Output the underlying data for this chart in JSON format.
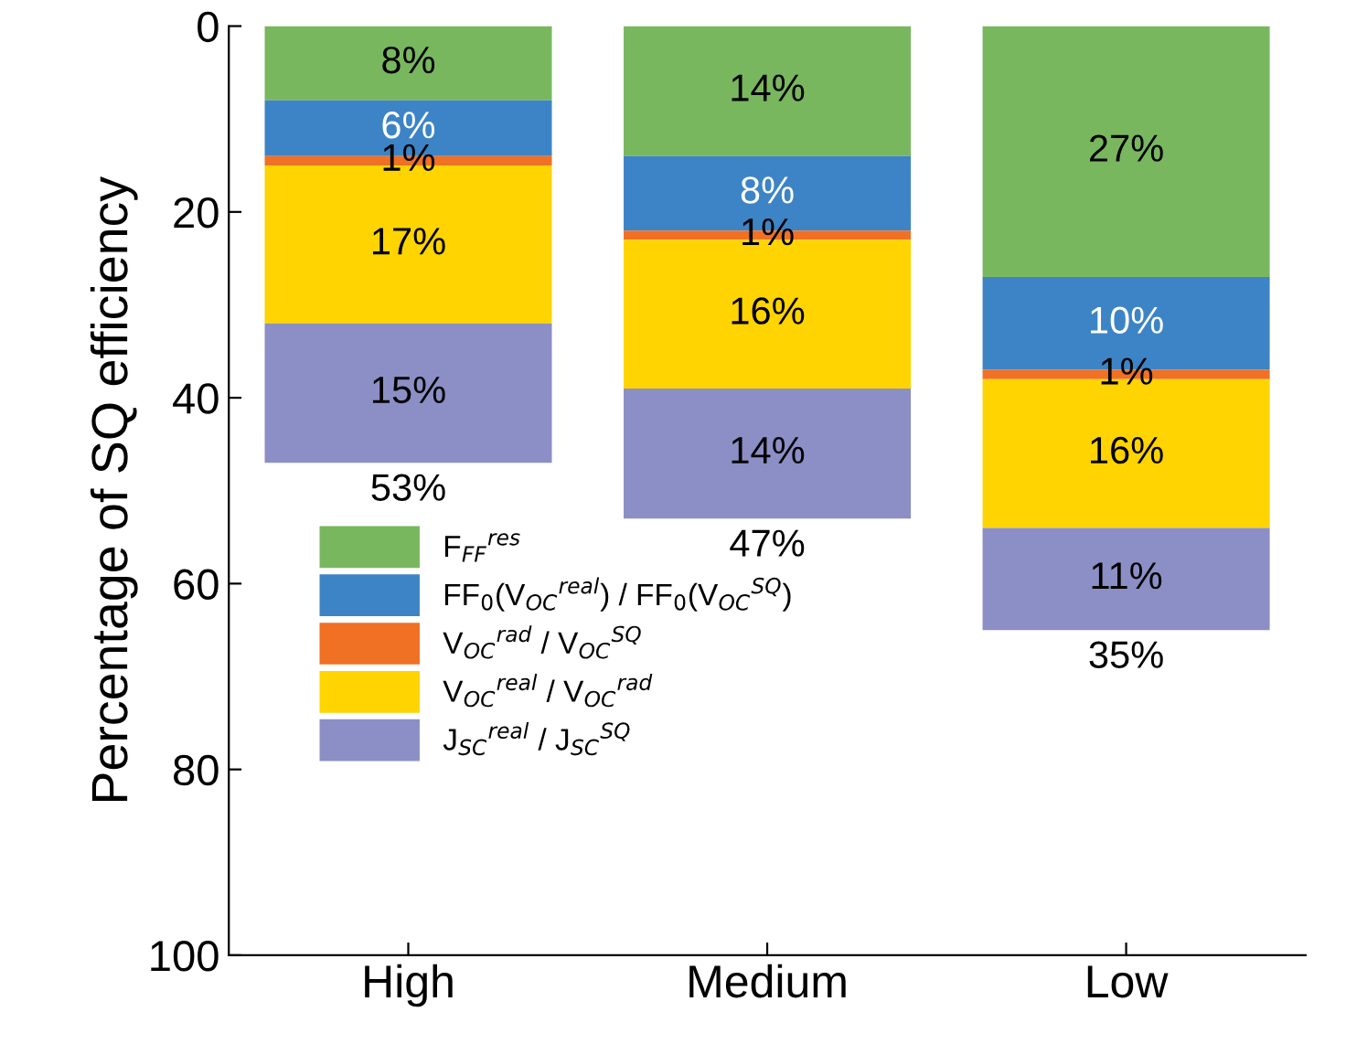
{
  "chart_data": {
    "type": "bar",
    "stacked": true,
    "ylabel": "Percentage of SQ efficiency",
    "categories": [
      "High",
      "Medium",
      "Low"
    ],
    "ylim": [
      100,
      0
    ],
    "yticks": [
      0,
      20,
      40,
      60,
      80,
      100
    ],
    "grid": false,
    "legend": "bottom left",
    "series": [
      {
        "name": "F$_{FF}$$^{res}$",
        "color": "#79b75f",
        "values": [
          8,
          14,
          27
        ],
        "value_labels": [
          "8%",
          "14%",
          "27%"
        ]
      },
      {
        "name": "FF$_{0}$(V$_{OC}$$^{real}$) / FF$_{0}$(V$_{OC}$$^{SQ}$)",
        "color": "#3d84c6",
        "values": [
          6,
          8,
          10
        ],
        "value_labels": [
          "6%",
          "8%",
          "10%"
        ]
      },
      {
        "name": "V$_{OC}$$^{rad}$ / V$_{OC}$$^{SQ}$",
        "color": "#f07024",
        "values": [
          1,
          1,
          1
        ],
        "value_labels": [
          "1%",
          "1%",
          "1%"
        ]
      },
      {
        "name": "V$_{OC}$$^{real}$ / V$_{OC}$$^{rad}$",
        "color": "#ffd400",
        "values": [
          17,
          16,
          16
        ],
        "value_labels": [
          "17%",
          "16%",
          "16%"
        ]
      },
      {
        "name": "J$_{SC}$$^{real}$ / J$_{SC}$$^{SQ}$",
        "color": "#8c8fc5",
        "values": [
          15,
          14,
          11
        ],
        "value_labels": [
          "15%",
          "14%",
          "11%"
        ]
      }
    ],
    "annotations": [
      {
        "text": "53%",
        "x": "High",
        "y": 47
      },
      {
        "text": "47%",
        "x": "Medium",
        "y": 53
      },
      {
        "text": "35%",
        "x": "Low",
        "y": 65
      }
    ]
  }
}
